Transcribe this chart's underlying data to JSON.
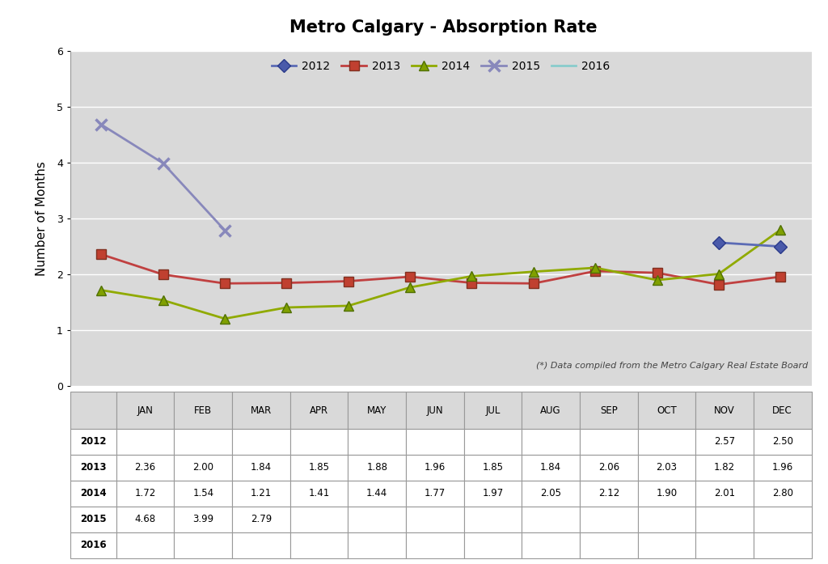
{
  "title": "Metro Calgary - Absorption Rate",
  "ylabel": "Number of Months",
  "months": [
    "JAN",
    "FEB",
    "MAR",
    "APR",
    "MAY",
    "JUN",
    "JUL",
    "AUG",
    "SEP",
    "OCT",
    "NOV",
    "DEC"
  ],
  "series": {
    "2012": {
      "values": [
        null,
        null,
        null,
        null,
        null,
        null,
        null,
        null,
        null,
        null,
        2.57,
        2.5
      ],
      "color": "#5b6bb5",
      "marker": "D",
      "markercolor": "#4a5aaa",
      "markeredgecolor": "#2a3a8a",
      "linewidth": 2.0,
      "markersize": 8,
      "zorder": 5
    },
    "2013": {
      "values": [
        2.36,
        2.0,
        1.84,
        1.85,
        1.88,
        1.96,
        1.85,
        1.84,
        2.06,
        2.03,
        1.82,
        1.96
      ],
      "color": "#c04040",
      "marker": "s",
      "markercolor": "#c04030",
      "markeredgecolor": "#803020",
      "linewidth": 2.0,
      "markersize": 8,
      "zorder": 4
    },
    "2014": {
      "values": [
        1.72,
        1.54,
        1.21,
        1.41,
        1.44,
        1.77,
        1.97,
        2.05,
        2.12,
        1.9,
        2.01,
        2.8
      ],
      "color": "#90aa00",
      "marker": "^",
      "markercolor": "#80a000",
      "markeredgecolor": "#507000",
      "linewidth": 2.0,
      "markersize": 9,
      "zorder": 4
    },
    "2015": {
      "values": [
        4.68,
        3.99,
        2.79,
        null,
        null,
        null,
        null,
        null,
        null,
        null,
        null,
        null
      ],
      "color": "#8888bb",
      "marker": "x",
      "markercolor": "#8888bb",
      "markeredgecolor": "#8888bb",
      "linewidth": 2.0,
      "markersize": 10,
      "zorder": 4
    },
    "2016": {
      "values": [
        null,
        null,
        null,
        null,
        null,
        null,
        null,
        null,
        null,
        null,
        null,
        null
      ],
      "color": "#88cccc",
      "marker": "None",
      "markercolor": "#88cccc",
      "markeredgecolor": "#88cccc",
      "linewidth": 2.0,
      "markersize": 8,
      "zorder": 3
    }
  },
  "series_order": [
    "2012",
    "2013",
    "2014",
    "2015",
    "2016"
  ],
  "ylim": [
    0,
    6
  ],
  "yticks": [
    0,
    1,
    2,
    3,
    4,
    5,
    6
  ],
  "annotation": "(*) Data compiled from the Metro Calgary Real Estate Board",
  "table_data": {
    "2012": [
      "",
      "",
      "",
      "",
      "",
      "",
      "",
      "",
      "",
      "",
      "2.57",
      "2.50"
    ],
    "2013": [
      "2.36",
      "2.00",
      "1.84",
      "1.85",
      "1.88",
      "1.96",
      "1.85",
      "1.84",
      "2.06",
      "2.03",
      "1.82",
      "1.96"
    ],
    "2014": [
      "1.72",
      "1.54",
      "1.21",
      "1.41",
      "1.44",
      "1.77",
      "1.97",
      "2.05",
      "2.12",
      "1.90",
      "2.01",
      "2.80"
    ],
    "2015": [
      "4.68",
      "3.99",
      "2.79",
      "",
      "",
      "",
      "",
      "",
      "",
      "",
      "",
      ""
    ],
    "2016": [
      "",
      "",
      "",
      "",
      "",
      "",
      "",
      "",
      "",
      "",
      "",
      ""
    ]
  },
  "table_years": [
    "2012",
    "2013",
    "2014",
    "2015",
    "2016"
  ],
  "plot_bg_color": "#d9d9d9",
  "fig_bg_color": "#ffffff",
  "grid_color": "#ffffff",
  "border_color": "#999999",
  "table_header_bg": "#d9d9d9",
  "table_cell_bg": "#ffffff"
}
